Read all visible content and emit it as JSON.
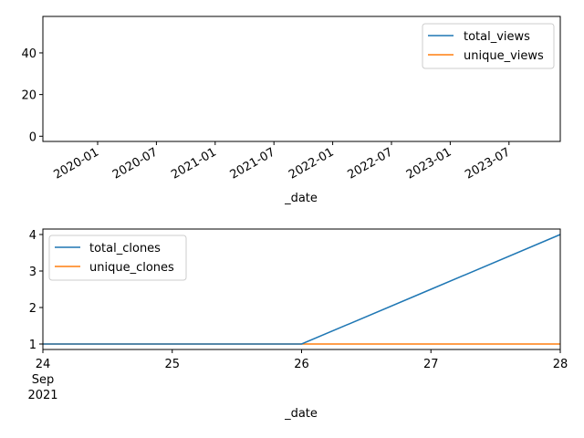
{
  "chart_data": [
    {
      "type": "line",
      "xlabel": "_date",
      "ylabel": "",
      "x_tick_labels": [
        "2020-01",
        "2020-07",
        "2021-01",
        "2021-07",
        "2022-01",
        "2022-07",
        "2023-01",
        "2023-07"
      ],
      "y_ticks": [
        0,
        20,
        40
      ],
      "ylim": [
        -2.5,
        57.5
      ],
      "legend_position": "top-right",
      "series": [
        {
          "name": "total_views",
          "color": "#1f77b4",
          "values": []
        },
        {
          "name": "unique_views",
          "color": "#ff7f0e",
          "values": []
        }
      ]
    },
    {
      "type": "line",
      "xlabel": "_date",
      "ylabel": "",
      "x": [
        "2021-09-24",
        "2021-09-25",
        "2021-09-26",
        "2021-09-27",
        "2021-09-28"
      ],
      "x_tick_labels": [
        "24",
        "25",
        "26",
        "27",
        "28"
      ],
      "x_tick_sublabels": [
        "Sep",
        "2021"
      ],
      "y_ticks": [
        1,
        2,
        3,
        4
      ],
      "ylim": [
        0.85,
        4.15
      ],
      "legend_position": "top-left",
      "series": [
        {
          "name": "total_clones",
          "color": "#1f77b4",
          "values": [
            1,
            1,
            1,
            2.5,
            4
          ]
        },
        {
          "name": "unique_clones",
          "color": "#ff7f0e",
          "values": [
            1,
            1,
            1,
            1,
            1
          ]
        }
      ]
    }
  ]
}
